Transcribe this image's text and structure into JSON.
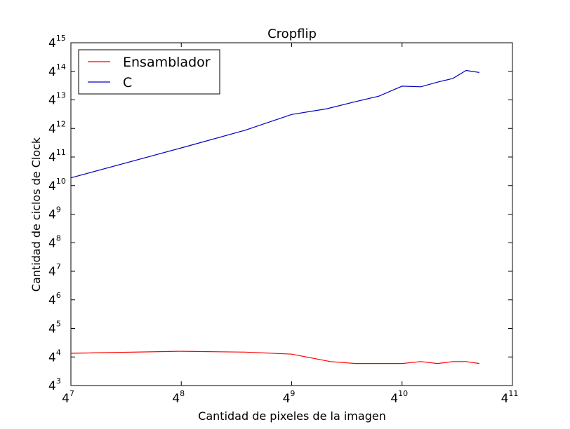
{
  "chart_data": {
    "type": "line",
    "title": "Cropflip",
    "xlabel": "Cantidad de pixeles de la imagen",
    "ylabel": "Cantidad de ciclos de Clock",
    "x_scale": "log4",
    "y_scale": "log4",
    "x_ticks": {
      "base": "4",
      "exponents": [
        "7",
        "8",
        "9",
        "10",
        "11"
      ]
    },
    "y_ticks": {
      "base": "4",
      "exponents": [
        "3",
        "4",
        "5",
        "6",
        "7",
        "8",
        "9",
        "10",
        "11",
        "12",
        "13",
        "14",
        "15"
      ]
    },
    "xlim_exp": [
      7,
      11
    ],
    "ylim_exp": [
      3,
      15
    ],
    "legend_position": "top-left",
    "grid": false,
    "series": [
      {
        "name": "Ensamblador",
        "color": "#ff0000",
        "x_exp": [
          7,
          8,
          8.58,
          9,
          9.35,
          9.58,
          9.79,
          10,
          10.17,
          10.32,
          10.46,
          10.58,
          10.7
        ],
        "y_exp": [
          4.13,
          4.2,
          4.17,
          4.1,
          3.84,
          3.77,
          3.77,
          3.77,
          3.84,
          3.77,
          3.84,
          3.84,
          3.77
        ]
      },
      {
        "name": "C",
        "color": "#0000bf",
        "x_exp": [
          7,
          8,
          8.58,
          9,
          9.32,
          9.58,
          9.79,
          10,
          10.17,
          10.32,
          10.46,
          10.58,
          10.7
        ],
        "y_exp": [
          10.27,
          11.32,
          11.94,
          12.49,
          12.69,
          12.94,
          13.13,
          13.48,
          13.46,
          13.62,
          13.75,
          14.03,
          13.96
        ]
      }
    ]
  }
}
